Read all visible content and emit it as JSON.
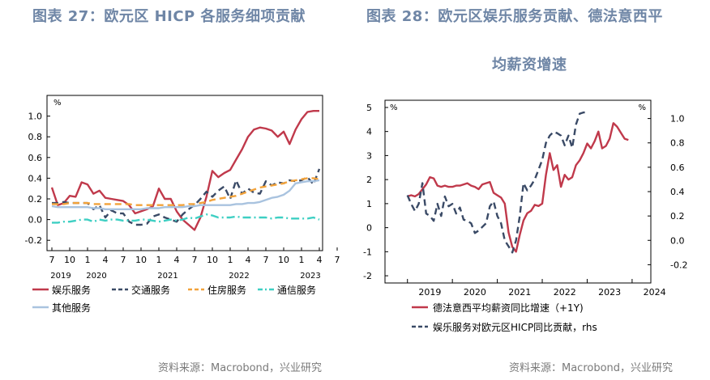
{
  "left": {
    "title": "图表  27：欧元区 HICP 各服务细项贡献",
    "source": "资料来源：Macrobond，兴业研究",
    "chart_data": {
      "type": "line",
      "title": "图表  27：欧元区 HICP 各服务细项贡献",
      "unit": "%",
      "ylim": [
        -0.3,
        1.2
      ],
      "yticks": [
        "1.0",
        "0.8",
        "0.6",
        "0.4",
        "0.2",
        "0.0",
        "-0.2"
      ],
      "month_labels": [
        "7",
        "10",
        "1",
        "4",
        "7",
        "10",
        "1",
        "4",
        "7",
        "10",
        "1",
        "4",
        "7",
        "10",
        "1",
        "4",
        "7"
      ],
      "year_labels": [
        "2019",
        "2020",
        "2021",
        "2022",
        "2023"
      ],
      "x_start": "2019-07",
      "legend_placement": "bottom",
      "series": [
        {
          "name": "娱乐服务",
          "color": "#c0394b",
          "dash": "solid",
          "values": [
            0.31,
            0.14,
            0.16,
            0.23,
            0.22,
            0.36,
            0.34,
            0.25,
            0.28,
            0.21,
            0.2,
            0.19,
            0.18,
            0.14,
            0.06,
            0.08,
            0.1,
            0.13,
            0.3,
            0.2,
            0.2,
            0.08,
            0.0,
            -0.05,
            -0.1,
            0.02,
            0.22,
            0.47,
            0.41,
            0.45,
            0.48,
            0.58,
            0.68,
            0.8,
            0.87,
            0.89,
            0.88,
            0.86,
            0.8,
            0.85,
            0.73,
            0.87,
            0.97,
            1.04,
            1.05,
            1.05
          ]
        },
        {
          "name": "交通服务",
          "color": "#3a4a66",
          "dash": "8,5",
          "values": [
            0.16,
            0.16,
            0.17,
            0.16,
            0.16,
            0.16,
            0.16,
            0.1,
            0.14,
            0.02,
            0.09,
            0.06,
            0.06,
            -0.02,
            -0.05,
            -0.05,
            -0.04,
            0.03,
            0.05,
            0.02,
            0.0,
            -0.02,
            0.05,
            0.1,
            0.14,
            0.2,
            0.27,
            0.22,
            0.28,
            0.32,
            0.2,
            0.38,
            0.25,
            0.3,
            0.26,
            0.25,
            0.37,
            0.33,
            0.36,
            0.35,
            0.38,
            0.37,
            0.38,
            0.41,
            0.34,
            0.49
          ]
        },
        {
          "name": "住房服务",
          "color": "#f2a23a",
          "dash": "8,5",
          "values": [
            0.15,
            0.15,
            0.15,
            0.16,
            0.16,
            0.16,
            0.16,
            0.15,
            0.15,
            0.15,
            0.15,
            0.15,
            0.15,
            0.15,
            0.14,
            0.14,
            0.14,
            0.14,
            0.14,
            0.14,
            0.14,
            0.14,
            0.14,
            0.15,
            0.15,
            0.16,
            0.17,
            0.19,
            0.2,
            0.21,
            0.22,
            0.23,
            0.25,
            0.27,
            0.29,
            0.31,
            0.32,
            0.33,
            0.34,
            0.35,
            0.37,
            0.38,
            0.39,
            0.4,
            0.4,
            0.39
          ]
        },
        {
          "name": "通信服务",
          "color": "#3ecfc3",
          "dash": "10,4,2,4",
          "values": [
            -0.03,
            -0.03,
            -0.02,
            -0.02,
            -0.01,
            0.0,
            0.0,
            -0.02,
            0.0,
            -0.01,
            0.0,
            0.0,
            -0.01,
            -0.01,
            -0.01,
            0.0,
            0.0,
            -0.01,
            -0.02,
            -0.01,
            0.0,
            -0.01,
            0.0,
            0.02,
            0.01,
            0.03,
            0.05,
            0.04,
            0.02,
            0.02,
            0.02,
            0.03,
            0.02,
            0.02,
            0.02,
            0.02,
            0.02,
            0.01,
            0.02,
            0.02,
            0.01,
            0.01,
            0.01,
            0.01,
            0.02,
            0.0
          ]
        },
        {
          "name": "其他服务",
          "color": "#a9c3df",
          "dash": "solid",
          "values": [
            0.13,
            0.12,
            0.12,
            0.12,
            0.12,
            0.12,
            0.12,
            0.11,
            0.11,
            0.1,
            0.1,
            0.1,
            0.1,
            0.1,
            0.1,
            0.1,
            0.11,
            0.11,
            0.11,
            0.12,
            0.12,
            0.12,
            0.12,
            0.13,
            0.13,
            0.14,
            0.14,
            0.14,
            0.14,
            0.14,
            0.14,
            0.15,
            0.15,
            0.16,
            0.16,
            0.17,
            0.19,
            0.21,
            0.22,
            0.24,
            0.28,
            0.35,
            0.36,
            0.37,
            0.37,
            0.38
          ]
        }
      ]
    }
  },
  "right": {
    "title_line1": "图表  28：欧元区娱乐服务贡献、德法意西平",
    "title_line2": "均薪资增速",
    "source": "资料来源：Macrobond，兴业研究",
    "chart_data": {
      "type": "line",
      "left_unit": "%",
      "right_unit": "%",
      "ylim_left": [
        -2.3,
        5.3
      ],
      "ylim_right": [
        -0.35,
        1.15
      ],
      "yticks_left": [
        "5",
        "4",
        "3",
        "2",
        "1",
        "0",
        "-1",
        "-2"
      ],
      "yticks_right": [
        "1.0",
        "0.8",
        "0.6",
        "0.4",
        "0.2",
        "0.0",
        "-0.2"
      ],
      "x_labels": [
        "2019",
        "2020",
        "2021",
        "2022",
        "2023",
        "2024"
      ],
      "legend_placement": "bottom",
      "series": [
        {
          "name": "德法意西平均薪资同比增速（+1Y)",
          "axis": "left",
          "color": "#c0394b",
          "dash": "solid",
          "start": "2019-01",
          "values": [
            1.3,
            1.35,
            1.3,
            1.4,
            1.6,
            1.8,
            2.1,
            2.05,
            1.75,
            1.7,
            1.75,
            1.7,
            1.7,
            1.75,
            1.75,
            1.8,
            1.85,
            1.75,
            1.7,
            1.6,
            1.8,
            1.85,
            1.9,
            1.45,
            1.35,
            1.25,
            1.0,
            -0.2,
            -0.8,
            -1.0,
            -0.3,
            0.3,
            0.6,
            0.7,
            0.95,
            0.9,
            1.0,
            2.2,
            3.1,
            2.4,
            2.6,
            1.7,
            2.2,
            2.0,
            2.1,
            2.6,
            2.8,
            3.1,
            3.5,
            3.3,
            3.6,
            4.0,
            3.3,
            3.4,
            3.7,
            4.35,
            4.2,
            3.95,
            3.7,
            3.65
          ]
        },
        {
          "name": "娱乐服务对欧元区HICP同比贡献，rhs",
          "axis": "right",
          "color": "#3a4a66",
          "dash": "8,5",
          "start": "2019-01",
          "values": [
            0.37,
            0.3,
            0.24,
            0.3,
            0.47,
            0.22,
            0.2,
            0.16,
            0.3,
            0.2,
            0.36,
            0.28,
            0.3,
            0.22,
            0.27,
            0.17,
            0.16,
            0.14,
            0.06,
            0.08,
            0.11,
            0.14,
            0.28,
            0.32,
            0.2,
            0.14,
            0.0,
            -0.05,
            -0.1,
            0.0,
            0.2,
            0.47,
            0.41,
            0.45,
            0.5,
            0.58,
            0.66,
            0.8,
            0.86,
            0.89,
            0.88,
            0.86,
            0.78,
            0.86,
            0.76,
            0.95,
            1.04,
            1.05,
            1.05
          ]
        }
      ]
    }
  }
}
